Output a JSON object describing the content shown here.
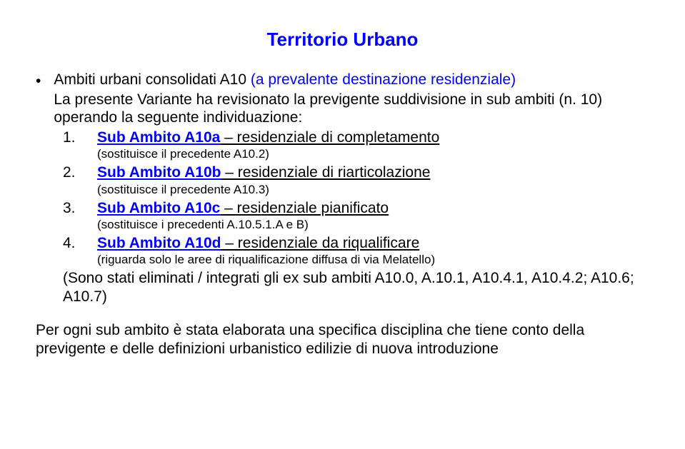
{
  "title": "Territorio Urbano",
  "title_color": "#0000ff",
  "bullet": "•",
  "intro_line1_a": "Ambiti urbani consolidati A10 ",
  "intro_line1_b": "(a prevalente destinazione residenziale)",
  "intro_line1_b_color": "#0000ff",
  "intro_line2": "La presente Variante ha revisionato la previgente suddivisione in sub ambiti (n. 10) operando la seguente individuazione:",
  "items": [
    {
      "num": "1.",
      "label": "Sub Ambito A10a",
      "label_color": "#0000ff",
      "desc": " – residenziale di completamento",
      "note": "(sostituisce il precedente A10.2)"
    },
    {
      "num": "2.",
      "label": "Sub Ambito A10b",
      "label_color": "#0000ff",
      "desc": " – residenziale di riarticolazione",
      "note": "(sostituisce il precedente A10.3)"
    },
    {
      "num": "3.",
      "label": "Sub Ambito A10c",
      "label_color": "#0000ff",
      "desc": " – residenziale pianificato",
      "note": "(sostituisce i precedenti A.10.5.1.A e B)"
    },
    {
      "num": "4.",
      "label": "Sub Ambito A10d",
      "label_color": "#0000ff",
      "desc": " – residenziale da riqualificare",
      "note": "(riguarda solo le aree di riqualificazione diffusa di via Melatello)"
    }
  ],
  "eliminated": "(Sono stati eliminati / integrati gli ex sub ambiti A10.0, A.10.1, A10.4.1, A10.4.2; A10.6; A10.7)",
  "footer": "Per ogni sub ambito è stata elaborata una specifica disciplina che tiene conto della previgente e delle definizioni urbanistico edilizie di nuova introduzione"
}
